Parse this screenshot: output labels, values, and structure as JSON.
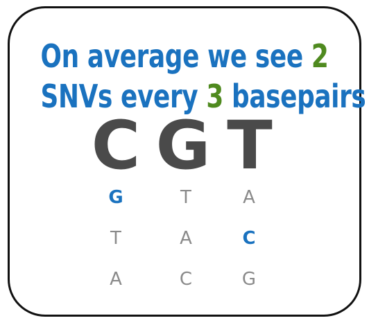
{
  "headline": {
    "line1_text": "On average we see ",
    "line1_number": "2",
    "line2_start": "SNVs every ",
    "line2_number": "3",
    "line2_end": " basepairs"
  },
  "reference": [
    "C",
    "G",
    "T"
  ],
  "alternatives": [
    [
      {
        "base": "G",
        "snv": true
      },
      {
        "base": "T",
        "snv": false
      },
      {
        "base": "A",
        "snv": false
      }
    ],
    [
      {
        "base": "T",
        "snv": false
      },
      {
        "base": "A",
        "snv": false
      },
      {
        "base": "C",
        "snv": true
      }
    ],
    [
      {
        "base": "A",
        "snv": false
      },
      {
        "base": "C",
        "snv": false
      },
      {
        "base": "G",
        "snv": false
      }
    ]
  ],
  "colors": {
    "headline": "#1a72bf",
    "accent": "#4f8a1f",
    "reference": "#4a4a4a",
    "alt": "#8a8a8a",
    "snv": "#1a72bf",
    "border": "#111111"
  }
}
